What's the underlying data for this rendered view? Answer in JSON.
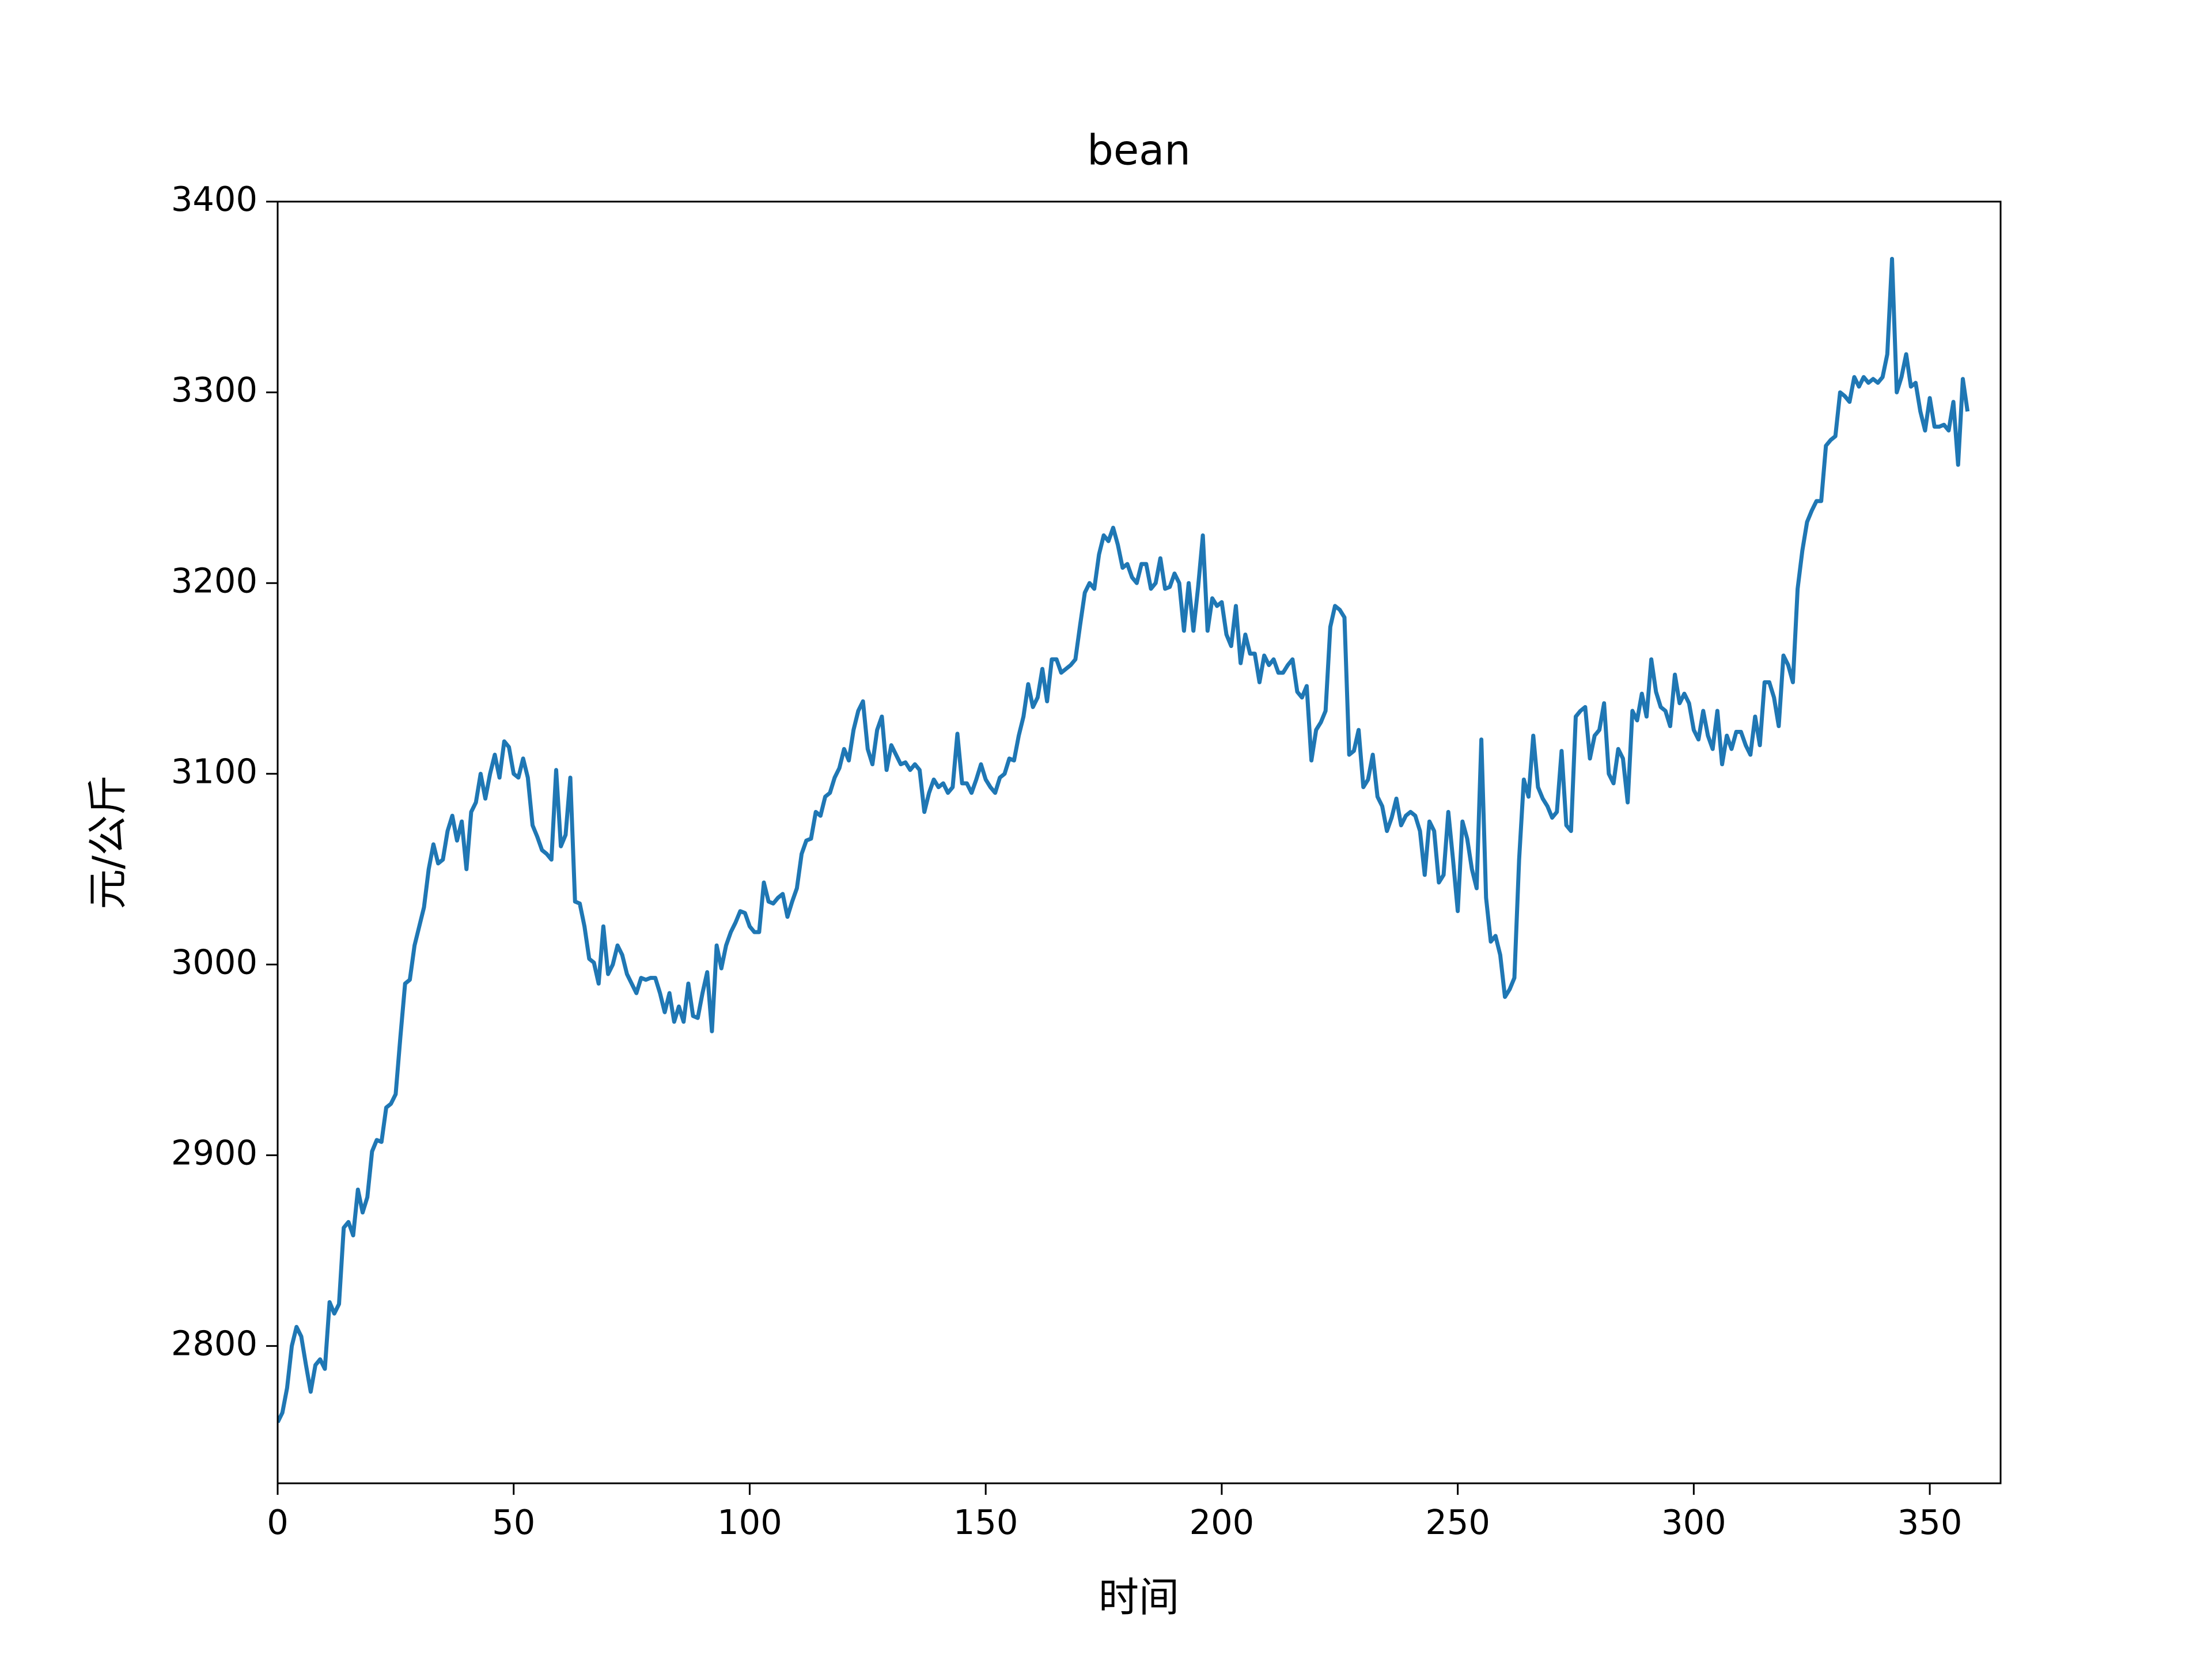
{
  "chart_data": {
    "type": "line",
    "title": "bean",
    "xlabel": "时间",
    "ylabel": "元/公斤",
    "xlim": [
      0,
      365
    ],
    "xticks": [
      0,
      50,
      100,
      150,
      200,
      250,
      300,
      350
    ],
    "ylim": [
      2728,
      3400
    ],
    "yticks": [
      2800,
      2900,
      3000,
      3100,
      3200,
      3300,
      3400
    ],
    "grid": false,
    "series": [
      {
        "name": "bean",
        "color": "#1f77b4",
        "values": [
          2760,
          2765,
          2778,
          2800,
          2810,
          2805,
          2790,
          2776,
          2790,
          2793,
          2788,
          2823,
          2817,
          2822,
          2862,
          2865,
          2858,
          2882,
          2870,
          2878,
          2902,
          2908,
          2907,
          2925,
          2927,
          2932,
          2962,
          2990,
          2992,
          3010,
          3020,
          3030,
          3050,
          3063,
          3053,
          3055,
          3070,
          3078,
          3065,
          3075,
          3050,
          3080,
          3085,
          3100,
          3087,
          3100,
          3110,
          3098,
          3117,
          3114,
          3100,
          3098,
          3108,
          3098,
          3073,
          3067,
          3060,
          3058,
          3055,
          3102,
          3062,
          3068,
          3098,
          3033,
          3032,
          3020,
          3003,
          3001,
          2990,
          3020,
          2995,
          3000,
          3010,
          3005,
          2995,
          2990,
          2985,
          2993,
          2992,
          2993,
          2993,
          2985,
          2975,
          2985,
          2970,
          2978,
          2970,
          2990,
          2973,
          2972,
          2985,
          2996,
          2965,
          3010,
          2998,
          3010,
          3017,
          3022,
          3028,
          3027,
          3020,
          3017,
          3017,
          3043,
          3033,
          3032,
          3035,
          3037,
          3025,
          3033,
          3040,
          3058,
          3065,
          3066,
          3080,
          3078,
          3088,
          3090,
          3098,
          3103,
          3113,
          3107,
          3123,
          3133,
          3138,
          3113,
          3105,
          3123,
          3130,
          3102,
          3115,
          3110,
          3105,
          3106,
          3102,
          3105,
          3102,
          3080,
          3090,
          3097,
          3093,
          3095,
          3090,
          3093,
          3121,
          3095,
          3095,
          3090,
          3097,
          3105,
          3097,
          3093,
          3090,
          3098,
          3100,
          3108,
          3107,
          3120,
          3130,
          3147,
          3135,
          3140,
          3155,
          3138,
          3160,
          3160,
          3153,
          3155,
          3157,
          3160,
          3178,
          3195,
          3200,
          3197,
          3215,
          3225,
          3222,
          3229,
          3220,
          3208,
          3210,
          3203,
          3200,
          3210,
          3210,
          3197,
          3200,
          3213,
          3197,
          3198,
          3205,
          3200,
          3175,
          3200,
          3175,
          3198,
          3225,
          3175,
          3192,
          3188,
          3190,
          3173,
          3167,
          3188,
          3158,
          3173,
          3163,
          3163,
          3148,
          3162,
          3157,
          3160,
          3153,
          3153,
          3157,
          3160,
          3143,
          3140,
          3146,
          3107,
          3123,
          3127,
          3133,
          3177,
          3188,
          3186,
          3182,
          3110,
          3112,
          3123,
          3093,
          3097,
          3110,
          3088,
          3083,
          3070,
          3077,
          3087,
          3073,
          3078,
          3080,
          3078,
          3070,
          3047,
          3075,
          3070,
          3043,
          3047,
          3080,
          3055,
          3028,
          3075,
          3066,
          3050,
          3040,
          3118,
          3035,
          3012,
          3015,
          3005,
          2983,
          2987,
          2993,
          3055,
          3097,
          3088,
          3120,
          3093,
          3087,
          3083,
          3077,
          3080,
          3112,
          3073,
          3070,
          3130,
          3133,
          3135,
          3108,
          3120,
          3123,
          3137,
          3100,
          3095,
          3113,
          3108,
          3085,
          3133,
          3128,
          3142,
          3130,
          3160,
          3143,
          3135,
          3133,
          3125,
          3152,
          3137,
          3142,
          3137,
          3123,
          3118,
          3133,
          3120,
          3113,
          3133,
          3105,
          3120,
          3113,
          3122,
          3122,
          3115,
          3110,
          3130,
          3115,
          3148,
          3148,
          3140,
          3125,
          3162,
          3157,
          3148,
          3197,
          3217,
          3232,
          3238,
          3243,
          3243,
          3272,
          3275,
          3277,
          3300,
          3298,
          3295,
          3308,
          3303,
          3308,
          3305,
          3307,
          3305,
          3308,
          3320,
          3370,
          3300,
          3308,
          3320,
          3303,
          3305,
          3290,
          3280,
          3297,
          3282,
          3282,
          3283,
          3280,
          3295,
          3262,
          3307,
          3290
        ]
      }
    ]
  }
}
